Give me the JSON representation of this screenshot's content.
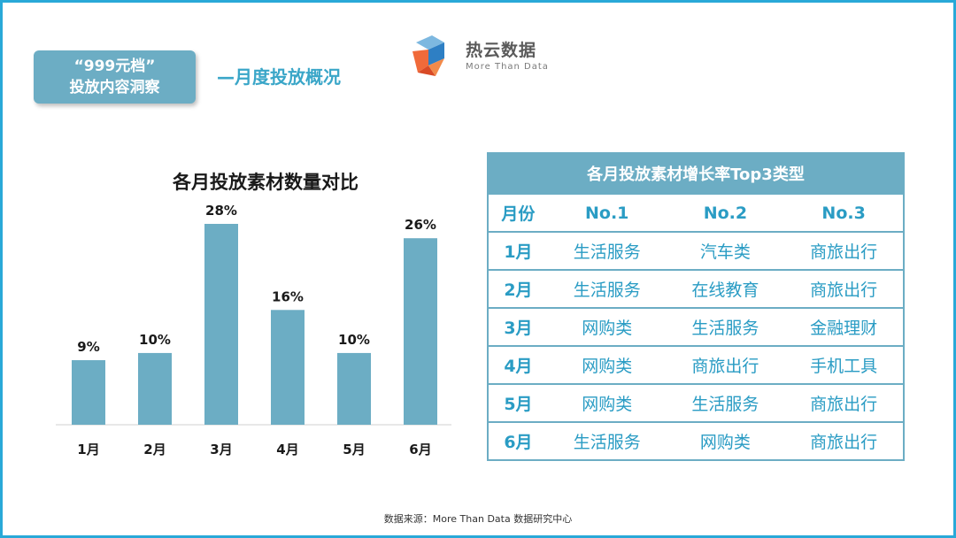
{
  "tag": {
    "line1": "“999元档”",
    "line2": "投放内容洞察"
  },
  "subtitle": "—月度投放概况",
  "logo": {
    "name": "热云数据",
    "tagline": "More Than Data"
  },
  "chart_data": {
    "type": "bar",
    "title": "各月投放素材数量对比",
    "categories": [
      "1月",
      "2月",
      "3月",
      "4月",
      "5月",
      "6月"
    ],
    "values": [
      9,
      10,
      28,
      16,
      10,
      26
    ],
    "value_labels": [
      "9%",
      "10%",
      "28%",
      "16%",
      "10%",
      "26%"
    ],
    "ylim": [
      0,
      28
    ],
    "grid": false,
    "bar_color": "#6cadc4"
  },
  "table": {
    "title": "各月投放素材增长率Top3类型",
    "headers": [
      "月份",
      "No.1",
      "No.2",
      "No.3"
    ],
    "rows": [
      [
        "1月",
        "生活服务",
        "汽车类",
        "商旅出行"
      ],
      [
        "2月",
        "生活服务",
        "在线教育",
        "商旅出行"
      ],
      [
        "3月",
        "网购类",
        "生活服务",
        "金融理财"
      ],
      [
        "4月",
        "网购类",
        "商旅出行",
        "手机工具"
      ],
      [
        "5月",
        "网购类",
        "生活服务",
        "商旅出行"
      ],
      [
        "6月",
        "生活服务",
        "网购类",
        "商旅出行"
      ]
    ]
  },
  "source": "数据来源：More  Than  Data  数据研究中心",
  "colors": {
    "accent": "#29a9d8",
    "bar": "#6cadc4",
    "table_text": "#2a9cc4"
  }
}
